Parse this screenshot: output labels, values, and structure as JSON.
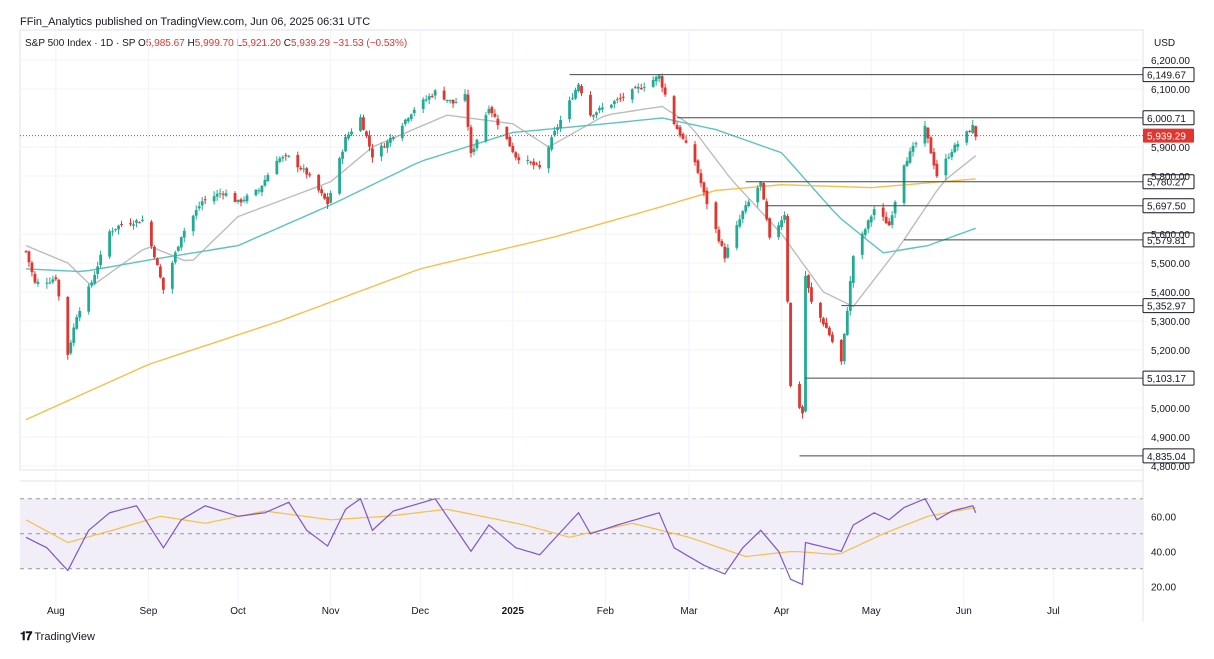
{
  "header": {
    "publisher_text": "FFin_Analytics published on TradingView.com, Jun 06, 2025 06:31 UTC",
    "currency": "USD"
  },
  "legend": {
    "symbol": "S&P 500 Index · 1D · SP",
    "open_label": "O",
    "open": "5,985.67",
    "high_label": "H",
    "high": "5,999.70",
    "low_label": "L",
    "low": "5,921.20",
    "close_label": "C",
    "close": "5,939.29",
    "change": "−31.53 (−0.53%)"
  },
  "footer": {
    "brand": "TradingView",
    "icon": "tradingview-logo-icon"
  },
  "colors": {
    "up": "#22ab94",
    "down": "#e0362f",
    "ma_fast": "#bdbdbd",
    "ma_mid": "#5dc2c6",
    "ma_slow": "#f5c04a",
    "rsi": "#7e57c2",
    "rsi_ma": "#f5c04a",
    "rsi_band": "#f1eef8",
    "level_line": "#434651",
    "last_price": "#e0362f"
  },
  "chart_data": [
    {
      "type": "candlestick",
      "title": "",
      "ylim": [
        4800,
        6200
      ],
      "yticks": [
        "6,200.00",
        "6,100.00",
        "5,900.00",
        "5,800.00",
        "5,600.00",
        "5,500.00",
        "5,400.00",
        "5,300.00",
        "5,200.00",
        "5,000.00",
        "4,900.00",
        "4,800.00"
      ],
      "ytick_values": [
        6200,
        6100,
        5900,
        5800,
        5600,
        5500,
        5400,
        5300,
        5200,
        5000,
        4900,
        4800
      ],
      "xlim": [
        "2025-07-20",
        "2025-07-31"
      ],
      "x_tick_labels": [
        {
          "label": "Aug",
          "date": "2024-08-01",
          "bold": false
        },
        {
          "label": "Sep",
          "date": "2024-09-01",
          "bold": false
        },
        {
          "label": "Oct",
          "date": "2024-10-01",
          "bold": false
        },
        {
          "label": "Nov",
          "date": "2024-11-01",
          "bold": false
        },
        {
          "label": "Dec",
          "date": "2024-12-01",
          "bold": false
        },
        {
          "label": "2025",
          "date": "2025-01-01",
          "bold": true
        },
        {
          "label": "Feb",
          "date": "2025-02-01",
          "bold": false
        },
        {
          "label": "Mar",
          "date": "2025-03-01",
          "bold": false
        },
        {
          "label": "Apr",
          "date": "2025-04-01",
          "bold": false
        },
        {
          "label": "May",
          "date": "2025-05-01",
          "bold": false
        },
        {
          "label": "Jun",
          "date": "2025-06-01",
          "bold": false
        },
        {
          "label": "Jul",
          "date": "2025-07-01",
          "bold": false
        }
      ],
      "date_range": [
        "2024-07-22",
        "2025-06-05"
      ],
      "price_keypoints": [
        [
          "2024-07-22",
          5540
        ],
        [
          "2024-07-25",
          5430
        ],
        [
          "2024-07-30",
          5440
        ],
        [
          "2024-08-01",
          5450
        ],
        [
          "2024-08-05",
          5186
        ],
        [
          "2024-08-08",
          5320
        ],
        [
          "2024-08-13",
          5434
        ],
        [
          "2024-08-19",
          5608
        ],
        [
          "2024-08-23",
          5634
        ],
        [
          "2024-08-30",
          5648
        ],
        [
          "2024-09-03",
          5528
        ],
        [
          "2024-09-06",
          5408
        ],
        [
          "2024-09-12",
          5595
        ],
        [
          "2024-09-19",
          5713
        ],
        [
          "2024-09-26",
          5745
        ],
        [
          "2024-10-01",
          5709
        ],
        [
          "2024-10-08",
          5751
        ],
        [
          "2024-10-14",
          5859
        ],
        [
          "2024-10-18",
          5864
        ],
        [
          "2024-10-24",
          5809
        ],
        [
          "2024-10-31",
          5705
        ],
        [
          "2024-11-06",
          5929
        ],
        [
          "2024-11-11",
          6001
        ],
        [
          "2024-11-15",
          5870
        ],
        [
          "2024-11-20",
          5917
        ],
        [
          "2024-11-29",
          6032
        ],
        [
          "2024-12-06",
          6090
        ],
        [
          "2024-12-12",
          6051
        ],
        [
          "2024-12-16",
          6074
        ],
        [
          "2024-12-18",
          5872
        ],
        [
          "2024-12-24",
          6040
        ],
        [
          "2025-01-02",
          5868
        ],
        [
          "2025-01-10",
          5827
        ],
        [
          "2025-01-15",
          5950
        ],
        [
          "2025-01-23",
          6118
        ],
        [
          "2025-01-27",
          6012
        ],
        [
          "2025-02-05",
          6061
        ],
        [
          "2025-02-14",
          6114
        ],
        [
          "2025-02-19",
          6144
        ],
        [
          "2025-02-24",
          5983
        ],
        [
          "2025-03-03",
          5849
        ],
        [
          "2025-03-06",
          5738
        ],
        [
          "2025-03-10",
          5614
        ],
        [
          "2025-03-13",
          5522
        ],
        [
          "2025-03-19",
          5675
        ],
        [
          "2025-03-25",
          5776
        ],
        [
          "2025-03-28",
          5580
        ],
        [
          "2025-04-02",
          5670
        ],
        [
          "2025-04-04",
          5074
        ],
        [
          "2025-04-08",
          4982
        ],
        [
          "2025-04-09",
          5456
        ],
        [
          "2025-04-11",
          5363
        ],
        [
          "2025-04-16",
          5276
        ],
        [
          "2025-04-21",
          5158
        ],
        [
          "2025-04-25",
          5525
        ],
        [
          "2025-05-02",
          5686
        ],
        [
          "2025-05-07",
          5631
        ],
        [
          "2025-05-12",
          5844
        ],
        [
          "2025-05-19",
          5964
        ],
        [
          "2025-05-23",
          5802
        ],
        [
          "2025-05-28",
          5889
        ],
        [
          "2025-06-04",
          5970
        ],
        [
          "2025-06-05",
          5939.29
        ]
      ],
      "horizontal_levels": [
        {
          "label": "6,149.67",
          "value": 6149.67,
          "from": "2025-01-20"
        },
        {
          "label": "6,000.71",
          "value": 6000.71,
          "from": "2025-02-25"
        },
        {
          "label": "5,780.27",
          "value": 5780.27,
          "from": "2025-03-20"
        },
        {
          "label": "5,697.50",
          "value": 5697.5,
          "from": "2025-03-27"
        },
        {
          "label": "5,579.81",
          "value": 5579.81,
          "from": "2025-05-12"
        },
        {
          "label": "5,352.97",
          "value": 5352.97,
          "from": "2025-04-21"
        },
        {
          "label": "5,103.17",
          "value": 5103.17,
          "from": "2025-04-09"
        },
        {
          "label": "4,835.04",
          "value": 4835.04,
          "from": "2025-04-07"
        }
      ],
      "last_price": {
        "label": "5,939.29",
        "value": 5939.29
      },
      "moving_averages": [
        {
          "color": "ma_fast",
          "keypoints": [
            [
              "2024-07-22",
              5560
            ],
            [
              "2024-08-05",
              5500
            ],
            [
              "2024-08-13",
              5420
            ],
            [
              "2024-09-01",
              5560
            ],
            [
              "2024-09-15",
              5500
            ],
            [
              "2024-10-01",
              5660
            ],
            [
              "2024-11-01",
              5780
            ],
            [
              "2024-11-15",
              5900
            ],
            [
              "2024-12-10",
              6010
            ],
            [
              "2025-01-01",
              5980
            ],
            [
              "2025-01-13",
              5900
            ],
            [
              "2025-02-01",
              6010
            ],
            [
              "2025-02-20",
              6040
            ],
            [
              "2025-03-01",
              5980
            ],
            [
              "2025-03-15",
              5790
            ],
            [
              "2025-04-01",
              5600
            ],
            [
              "2025-04-15",
              5400
            ],
            [
              "2025-04-25",
              5350
            ],
            [
              "2025-05-10",
              5550
            ],
            [
              "2025-05-25",
              5780
            ],
            [
              "2025-06-05",
              5870
            ]
          ]
        },
        {
          "color": "ma_mid",
          "keypoints": [
            [
              "2024-07-22",
              5480
            ],
            [
              "2024-08-10",
              5470
            ],
            [
              "2024-09-01",
              5510
            ],
            [
              "2024-10-01",
              5560
            ],
            [
              "2024-11-01",
              5700
            ],
            [
              "2024-12-01",
              5850
            ],
            [
              "2025-01-01",
              5950
            ],
            [
              "2025-02-01",
              5980
            ],
            [
              "2025-02-20",
              6000
            ],
            [
              "2025-03-10",
              5960
            ],
            [
              "2025-04-01",
              5880
            ],
            [
              "2025-04-20",
              5660
            ],
            [
              "2025-05-05",
              5535
            ],
            [
              "2025-05-20",
              5560
            ],
            [
              "2025-06-05",
              5620
            ]
          ]
        },
        {
          "color": "ma_slow",
          "keypoints": [
            [
              "2024-07-22",
              4960
            ],
            [
              "2024-09-01",
              5150
            ],
            [
              "2024-10-15",
              5300
            ],
            [
              "2024-12-01",
              5480
            ],
            [
              "2025-01-15",
              5590
            ],
            [
              "2025-02-15",
              5680
            ],
            [
              "2025-03-10",
              5750
            ],
            [
              "2025-04-01",
              5770
            ],
            [
              "2025-05-01",
              5760
            ],
            [
              "2025-06-05",
              5790
            ]
          ]
        }
      ]
    },
    {
      "type": "line",
      "title": "",
      "ylim": [
        15,
        75
      ],
      "yticks": [
        "60.00",
        "40.00",
        "20.00"
      ],
      "ytick_values": [
        60,
        40,
        20
      ],
      "band": [
        30,
        70
      ],
      "midline": 50,
      "series_keypoints": [
        {
          "color": "rsi",
          "keypoints": [
            [
              "2024-07-22",
              48
            ],
            [
              "2024-07-29",
              42
            ],
            [
              "2024-08-05",
              29
            ],
            [
              "2024-08-12",
              52
            ],
            [
              "2024-08-19",
              62
            ],
            [
              "2024-08-28",
              66
            ],
            [
              "2024-09-06",
              42
            ],
            [
              "2024-09-12",
              58
            ],
            [
              "2024-09-20",
              66
            ],
            [
              "2024-10-01",
              60
            ],
            [
              "2024-10-10",
              62
            ],
            [
              "2024-10-18",
              68
            ],
            [
              "2024-10-24",
              52
            ],
            [
              "2024-10-31",
              43
            ],
            [
              "2024-11-06",
              64
            ],
            [
              "2024-11-11",
              70
            ],
            [
              "2024-11-15",
              52
            ],
            [
              "2024-11-22",
              63
            ],
            [
              "2024-12-06",
              70
            ],
            [
              "2024-12-10",
              60
            ],
            [
              "2024-12-18",
              40
            ],
            [
              "2024-12-24",
              55
            ],
            [
              "2025-01-02",
              42
            ],
            [
              "2025-01-10",
              38
            ],
            [
              "2025-01-23",
              62
            ],
            [
              "2025-01-27",
              50
            ],
            [
              "2025-02-05",
              55
            ],
            [
              "2025-02-19",
              62
            ],
            [
              "2025-02-24",
              42
            ],
            [
              "2025-03-06",
              32
            ],
            [
              "2025-03-13",
              27
            ],
            [
              "2025-03-19",
              42
            ],
            [
              "2025-03-25",
              52
            ],
            [
              "2025-03-31",
              40
            ],
            [
              "2025-04-04",
              24
            ],
            [
              "2025-04-08",
              21
            ],
            [
              "2025-04-09",
              45
            ],
            [
              "2025-04-21",
              40
            ],
            [
              "2025-04-25",
              55
            ],
            [
              "2025-05-02",
              62
            ],
            [
              "2025-05-07",
              58
            ],
            [
              "2025-05-12",
              65
            ],
            [
              "2025-05-19",
              70
            ],
            [
              "2025-05-23",
              58
            ],
            [
              "2025-05-28",
              63
            ],
            [
              "2025-06-04",
              66
            ],
            [
              "2025-06-05",
              62
            ]
          ]
        },
        {
          "color": "rsi_ma",
          "keypoints": [
            [
              "2024-07-22",
              58
            ],
            [
              "2024-08-05",
              45
            ],
            [
              "2024-08-20",
              52
            ],
            [
              "2024-09-05",
              60
            ],
            [
              "2024-09-20",
              56
            ],
            [
              "2024-10-10",
              63
            ],
            [
              "2024-11-01",
              58
            ],
            [
              "2024-11-20",
              60
            ],
            [
              "2024-12-10",
              64
            ],
            [
              "2025-01-05",
              55
            ],
            [
              "2025-01-20",
              48
            ],
            [
              "2025-02-10",
              56
            ],
            [
              "2025-03-01",
              48
            ],
            [
              "2025-03-20",
              37
            ],
            [
              "2025-04-05",
              40
            ],
            [
              "2025-04-20",
              38
            ],
            [
              "2025-05-05",
              50
            ],
            [
              "2025-05-20",
              60
            ],
            [
              "2025-06-05",
              65
            ]
          ]
        }
      ]
    }
  ]
}
